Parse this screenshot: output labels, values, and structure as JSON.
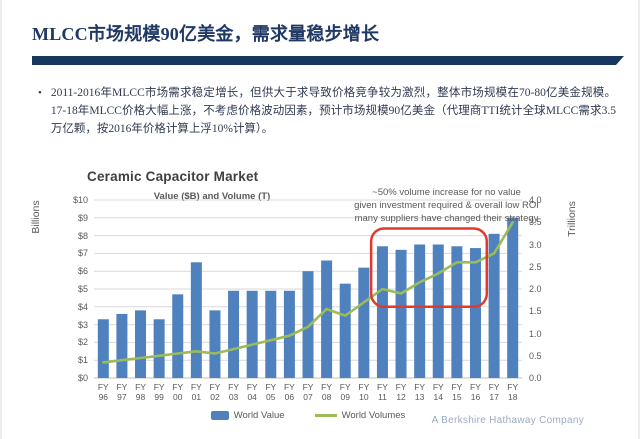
{
  "slide": {
    "title": "MLCC市场规模90亿美金，需求量稳步增长",
    "bullet_marker": "•",
    "bullet": "2011-2016年MLCC市场需求稳定增长，但供大于求导致价格竞争较为激烈，整体市场规模在70-80亿美金规模。17-18年MLCC价格大幅上涨，不考虑价格波动因素，预计市场规模90亿美金（代理商TTI统计全球MLCC需求3.5万亿颗，按2016年价格计算上浮10%计算）。",
    "footer_brand": "A Berkshire Hathaway Company"
  },
  "colors": {
    "title_navy": "#1f3864",
    "rule_navy": "#17375e",
    "bar_blue": "#4e81bd",
    "line_green": "#9bbb59",
    "highlight_red": "#e03a2f",
    "axis_gray": "#595959",
    "grid_gray": "#d9d9d9",
    "brand_gray": "#9aabc2"
  },
  "chart_data": {
    "type": "bar",
    "title": "Ceramic Capacitor Market",
    "subtitle": "Value ($B) and Volume (T)",
    "grid": true,
    "legend_position": "bottom",
    "left_axis": {
      "label": "Billions",
      "min": 0,
      "max": 10,
      "ticks": [
        "$0",
        "$1",
        "$2",
        "$3",
        "$4",
        "$5",
        "$6",
        "$7",
        "$8",
        "$9",
        "$10"
      ]
    },
    "right_axis": {
      "label": "Trillions",
      "min": 0,
      "max": 4,
      "ticks": [
        "0.0",
        "0.5",
        "1.0",
        "1.5",
        "2.0",
        "2.5",
        "3.0",
        "3.5",
        "4.0"
      ]
    },
    "x_prefix": "FY",
    "x_years": [
      "96",
      "97",
      "98",
      "99",
      "00",
      "01",
      "02",
      "03",
      "04",
      "05",
      "06",
      "07",
      "08",
      "09",
      "10",
      "11",
      "12",
      "13",
      "14",
      "15",
      "16",
      "17",
      "18"
    ],
    "categories": [
      "FY 96",
      "FY 97",
      "FY 98",
      "FY 99",
      "FY 00",
      "FY 01",
      "FY 02",
      "FY 03",
      "FY 04",
      "FY 05",
      "FY 06",
      "FY 07",
      "FY 08",
      "FY 09",
      "FY 10",
      "FY 11",
      "FY 12",
      "FY 13",
      "FY 14",
      "FY 15",
      "FY 16",
      "FY 17",
      "FY 18"
    ],
    "series": [
      {
        "name": "World Value",
        "type": "bar",
        "axis": "left",
        "color": "#4e81bd",
        "values": [
          3.3,
          3.6,
          3.8,
          3.3,
          4.7,
          6.5,
          3.8,
          4.9,
          4.9,
          4.9,
          4.9,
          6.0,
          6.6,
          5.3,
          6.2,
          7.4,
          7.2,
          7.5,
          7.5,
          7.4,
          7.3,
          8.1,
          9.0
        ]
      },
      {
        "name": "World Volumes",
        "type": "line",
        "axis": "right",
        "color": "#9bbb59",
        "values": [
          0.35,
          0.4,
          0.45,
          0.5,
          0.55,
          0.6,
          0.55,
          0.65,
          0.75,
          0.85,
          0.95,
          1.15,
          1.55,
          1.4,
          1.7,
          2.0,
          1.9,
          2.15,
          2.35,
          2.6,
          2.6,
          2.8,
          3.5
        ]
      }
    ],
    "annotation": {
      "lines": [
        "~50% volume increase for no value",
        "given investment required & overall low ROI",
        "many suppliers have changed their strategy"
      ],
      "box": {
        "from": "FY 11",
        "to": "FY 16",
        "value_top": 8.4,
        "value_bottom": 4.0,
        "color": "#e03a2f"
      }
    }
  }
}
